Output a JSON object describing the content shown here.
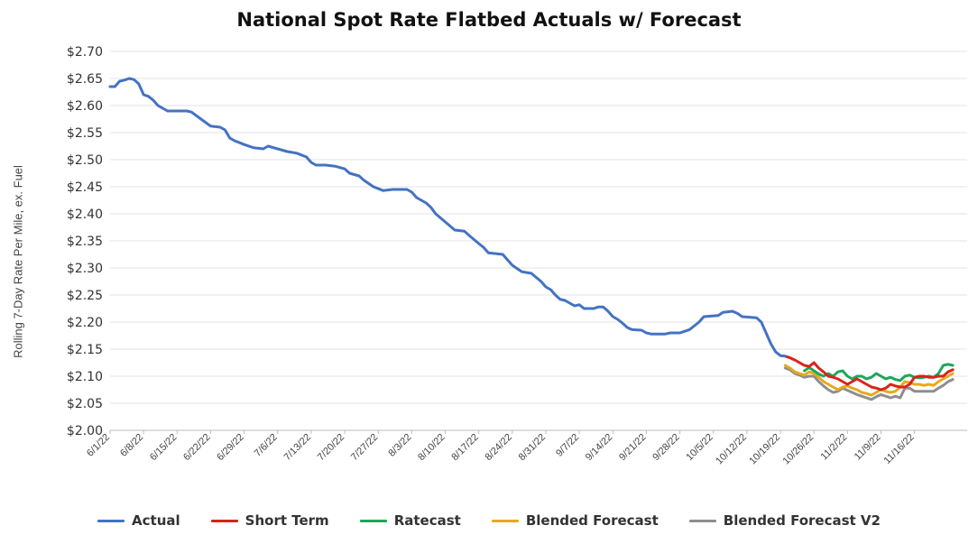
{
  "chart_data": {
    "type": "line",
    "title": "National Spot Rate Flatbed Actuals w/ Forecast",
    "ylabel": "Rolling 7-Day Rate Per Mile, ex. Fuel",
    "xlabel": "",
    "ylim": [
      2.0,
      2.7
    ],
    "y_ticks": [
      "$2.70",
      "$2.65",
      "$2.60",
      "$2.55",
      "$2.50",
      "$2.45",
      "$2.40",
      "$2.35",
      "$2.30",
      "$2.25",
      "$2.20",
      "$2.15",
      "$2.10",
      "$2.05",
      "$2.00"
    ],
    "x_tick_labels": [
      "6/1/22",
      "6/8/22",
      "6/15/22",
      "6/22/22",
      "6/29/22",
      "7/6/22",
      "7/13/22",
      "7/20/22",
      "7/27/22",
      "8/3/22",
      "8/10/22",
      "8/17/22",
      "8/24/22",
      "8/31/22",
      "9/7/22",
      "9/14/22",
      "9/21/22",
      "9/28/22",
      "10/5/22",
      "10/12/22",
      "10/19/22",
      "10/26/22",
      "11/2/22",
      "11/9/22",
      "11/16/22"
    ],
    "grid": true,
    "legend_position": "bottom",
    "series": [
      {
        "name": "Actual",
        "color": "#4472C4",
        "points": [
          [
            0,
            2.635
          ],
          [
            1,
            2.635
          ],
          [
            2,
            2.645
          ],
          [
            3,
            2.647
          ],
          [
            4,
            2.65
          ],
          [
            5,
            2.648
          ],
          [
            6,
            2.64
          ],
          [
            7,
            2.62
          ],
          [
            8,
            2.617
          ],
          [
            9,
            2.61
          ],
          [
            10,
            2.6
          ],
          [
            11,
            2.595
          ],
          [
            12,
            2.59
          ],
          [
            14,
            2.59
          ],
          [
            16,
            2.59
          ],
          [
            17,
            2.588
          ],
          [
            19,
            2.575
          ],
          [
            21,
            2.562
          ],
          [
            23,
            2.56
          ],
          [
            24,
            2.555
          ],
          [
            25,
            2.54
          ],
          [
            26,
            2.535
          ],
          [
            28,
            2.528
          ],
          [
            30,
            2.522
          ],
          [
            32,
            2.52
          ],
          [
            33,
            2.525
          ],
          [
            35,
            2.52
          ],
          [
            37,
            2.515
          ],
          [
            39,
            2.512
          ],
          [
            41,
            2.505
          ],
          [
            42,
            2.495
          ],
          [
            43,
            2.49
          ],
          [
            45,
            2.49
          ],
          [
            47,
            2.488
          ],
          [
            49,
            2.483
          ],
          [
            50,
            2.475
          ],
          [
            52,
            2.47
          ],
          [
            53,
            2.462
          ],
          [
            55,
            2.45
          ],
          [
            57,
            2.443
          ],
          [
            59,
            2.445
          ],
          [
            60,
            2.445
          ],
          [
            62,
            2.445
          ],
          [
            63,
            2.44
          ],
          [
            64,
            2.43
          ],
          [
            66,
            2.42
          ],
          [
            67,
            2.412
          ],
          [
            68,
            2.4
          ],
          [
            70,
            2.385
          ],
          [
            72,
            2.37
          ],
          [
            74,
            2.368
          ],
          [
            75,
            2.36
          ],
          [
            77,
            2.345
          ],
          [
            78,
            2.338
          ],
          [
            79,
            2.328
          ],
          [
            82,
            2.325
          ],
          [
            84,
            2.305
          ],
          [
            86,
            2.293
          ],
          [
            88,
            2.29
          ],
          [
            90,
            2.275
          ],
          [
            91,
            2.265
          ],
          [
            92,
            2.26
          ],
          [
            93,
            2.25
          ],
          [
            94,
            2.242
          ],
          [
            95,
            2.24
          ],
          [
            96,
            2.235
          ],
          [
            97,
            2.23
          ],
          [
            98,
            2.232
          ],
          [
            99,
            2.225
          ],
          [
            101,
            2.225
          ],
          [
            102,
            2.228
          ],
          [
            103,
            2.228
          ],
          [
            104,
            2.22
          ],
          [
            105,
            2.21
          ],
          [
            106,
            2.205
          ],
          [
            107,
            2.198
          ],
          [
            108,
            2.19
          ],
          [
            109,
            2.186
          ],
          [
            111,
            2.185
          ],
          [
            112,
            2.18
          ],
          [
            113,
            2.178
          ],
          [
            116,
            2.178
          ],
          [
            117,
            2.18
          ],
          [
            119,
            2.18
          ],
          [
            120,
            2.183
          ],
          [
            121,
            2.186
          ],
          [
            123,
            2.2
          ],
          [
            124,
            2.21
          ],
          [
            127,
            2.212
          ],
          [
            128,
            2.218
          ],
          [
            130,
            2.22
          ],
          [
            131,
            2.216
          ],
          [
            132,
            2.21
          ],
          [
            135,
            2.208
          ],
          [
            136,
            2.2
          ],
          [
            137,
            2.18
          ],
          [
            138,
            2.16
          ],
          [
            139,
            2.145
          ],
          [
            140,
            2.138
          ],
          [
            141,
            2.137
          ]
        ]
      },
      {
        "name": "Short Term",
        "color": "#D9221C",
        "points": [
          [
            141,
            2.137
          ],
          [
            142,
            2.134
          ],
          [
            143,
            2.13
          ],
          [
            144,
            2.125
          ],
          [
            145,
            2.12
          ],
          [
            146,
            2.118
          ],
          [
            147,
            2.125
          ],
          [
            148,
            2.115
          ],
          [
            149,
            2.108
          ],
          [
            150,
            2.1
          ],
          [
            151,
            2.098
          ],
          [
            152,
            2.095
          ],
          [
            153,
            2.09
          ],
          [
            154,
            2.085
          ],
          [
            155,
            2.09
          ],
          [
            156,
            2.095
          ],
          [
            157,
            2.09
          ],
          [
            158,
            2.085
          ],
          [
            159,
            2.08
          ],
          [
            160,
            2.078
          ],
          [
            161,
            2.075
          ],
          [
            162,
            2.078
          ],
          [
            163,
            2.085
          ],
          [
            164,
            2.082
          ],
          [
            165,
            2.08
          ],
          [
            166,
            2.08
          ],
          [
            167,
            2.085
          ],
          [
            168,
            2.098
          ],
          [
            169,
            2.1
          ],
          [
            170,
            2.1
          ],
          [
            171,
            2.098
          ],
          [
            172,
            2.098
          ],
          [
            173,
            2.1
          ],
          [
            174,
            2.1
          ],
          [
            175,
            2.108
          ],
          [
            176,
            2.112
          ]
        ]
      },
      {
        "name": "Ratecast",
        "color": "#1FA65A",
        "points": [
          [
            145,
            2.11
          ],
          [
            146,
            2.116
          ],
          [
            147,
            2.11
          ],
          [
            148,
            2.104
          ],
          [
            149,
            2.1
          ],
          [
            150,
            2.105
          ],
          [
            151,
            2.1
          ],
          [
            152,
            2.108
          ],
          [
            153,
            2.11
          ],
          [
            154,
            2.1
          ],
          [
            155,
            2.095
          ],
          [
            156,
            2.1
          ],
          [
            157,
            2.1
          ],
          [
            158,
            2.095
          ],
          [
            159,
            2.098
          ],
          [
            160,
            2.105
          ],
          [
            161,
            2.1
          ],
          [
            162,
            2.095
          ],
          [
            163,
            2.098
          ],
          [
            164,
            2.094
          ],
          [
            165,
            2.092
          ],
          [
            166,
            2.1
          ],
          [
            167,
            2.102
          ],
          [
            168,
            2.098
          ],
          [
            169,
            2.097
          ],
          [
            170,
            2.098
          ],
          [
            171,
            2.1
          ],
          [
            172,
            2.098
          ],
          [
            173,
            2.105
          ],
          [
            174,
            2.12
          ],
          [
            175,
            2.122
          ],
          [
            176,
            2.12
          ]
        ]
      },
      {
        "name": "Blended Forecast",
        "color": "#E7A91A",
        "points": [
          [
            141,
            2.12
          ],
          [
            142,
            2.115
          ],
          [
            143,
            2.108
          ],
          [
            144,
            2.105
          ],
          [
            145,
            2.102
          ],
          [
            146,
            2.108
          ],
          [
            147,
            2.105
          ],
          [
            148,
            2.098
          ],
          [
            149,
            2.09
          ],
          [
            150,
            2.085
          ],
          [
            151,
            2.08
          ],
          [
            152,
            2.075
          ],
          [
            153,
            2.08
          ],
          [
            154,
            2.082
          ],
          [
            155,
            2.078
          ],
          [
            156,
            2.075
          ],
          [
            157,
            2.07
          ],
          [
            158,
            2.068
          ],
          [
            159,
            2.065
          ],
          [
            160,
            2.07
          ],
          [
            161,
            2.075
          ],
          [
            162,
            2.072
          ],
          [
            163,
            2.07
          ],
          [
            164,
            2.072
          ],
          [
            165,
            2.08
          ],
          [
            166,
            2.09
          ],
          [
            167,
            2.088
          ],
          [
            168,
            2.085
          ],
          [
            169,
            2.085
          ],
          [
            170,
            2.083
          ],
          [
            171,
            2.085
          ],
          [
            172,
            2.083
          ],
          [
            173,
            2.09
          ],
          [
            174,
            2.095
          ],
          [
            175,
            2.1
          ],
          [
            176,
            2.105
          ]
        ]
      },
      {
        "name": "Blended Forecast V2",
        "color": "#8E8E8E",
        "points": [
          [
            141,
            2.115
          ],
          [
            142,
            2.112
          ],
          [
            143,
            2.105
          ],
          [
            144,
            2.102
          ],
          [
            145,
            2.098
          ],
          [
            146,
            2.1
          ],
          [
            147,
            2.1
          ],
          [
            148,
            2.09
          ],
          [
            149,
            2.082
          ],
          [
            150,
            2.075
          ],
          [
            151,
            2.07
          ],
          [
            152,
            2.072
          ],
          [
            153,
            2.078
          ],
          [
            154,
            2.074
          ],
          [
            155,
            2.07
          ],
          [
            156,
            2.066
          ],
          [
            157,
            2.063
          ],
          [
            158,
            2.06
          ],
          [
            159,
            2.057
          ],
          [
            160,
            2.062
          ],
          [
            161,
            2.066
          ],
          [
            162,
            2.063
          ],
          [
            163,
            2.06
          ],
          [
            164,
            2.063
          ],
          [
            165,
            2.06
          ],
          [
            166,
            2.078
          ],
          [
            167,
            2.078
          ],
          [
            168,
            2.072
          ],
          [
            169,
            2.072
          ],
          [
            170,
            2.072
          ],
          [
            171,
            2.072
          ],
          [
            172,
            2.072
          ],
          [
            173,
            2.078
          ],
          [
            174,
            2.083
          ],
          [
            175,
            2.09
          ],
          [
            176,
            2.094
          ]
        ]
      }
    ]
  }
}
